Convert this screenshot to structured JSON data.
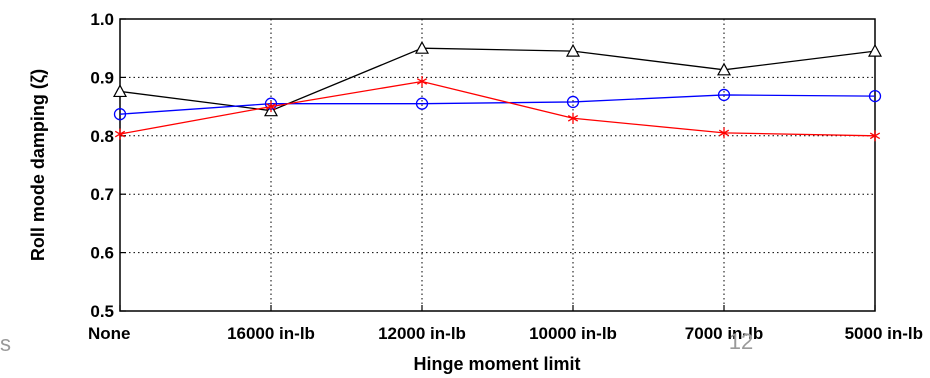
{
  "chart_data": {
    "type": "line",
    "title": "",
    "xlabel": "Hinge moment limit",
    "ylabel": "Roll mode damping (ζ)",
    "categories": [
      "None",
      "16000 in-lb",
      "12000 in-lb",
      "10000 in-lb",
      "7000 in-lb",
      "5000 in-lb"
    ],
    "ylim": [
      0.5,
      1.0
    ],
    "yticks": [
      "0.5",
      "0.6",
      "0.7",
      "0.8",
      "0.9",
      "1.0"
    ],
    "grid": true,
    "series": [
      {
        "marker": "triangle",
        "color": "#000000",
        "values": [
          0.876,
          0.843,
          0.95,
          0.945,
          0.913,
          0.945
        ]
      },
      {
        "marker": "circle",
        "color": "#0000ff",
        "values": [
          0.837,
          0.855,
          0.855,
          0.858,
          0.87,
          0.868
        ]
      },
      {
        "marker": "asterisk",
        "color": "#ff0000",
        "values": [
          0.803,
          0.85,
          0.893,
          0.83,
          0.805,
          0.8
        ]
      }
    ]
  },
  "slide": {
    "page_number": "12",
    "edge_char": "s"
  }
}
